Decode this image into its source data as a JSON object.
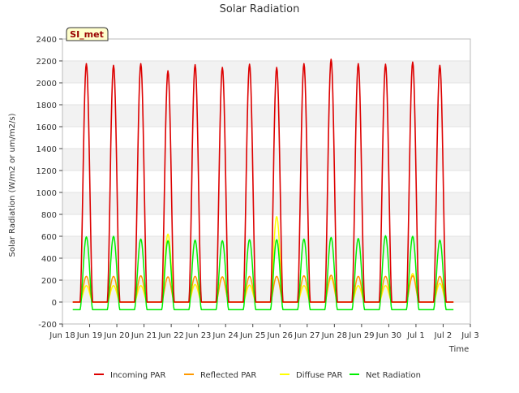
{
  "chart_data": {
    "type": "line",
    "title": "Solar Radiation",
    "xlabel": "Time",
    "ylabel": "Solar Radiation (W/m2 or um/m2/s)",
    "ylim": [
      -200,
      2400
    ],
    "xlim": [
      0,
      15
    ],
    "yticks": [
      -200,
      0,
      200,
      400,
      600,
      800,
      1000,
      1200,
      1400,
      1600,
      1800,
      2000,
      2200,
      2400
    ],
    "xticks": [
      {
        "value": 0,
        "label": "Jun 18"
      },
      {
        "value": 1,
        "label": "Jun 19"
      },
      {
        "value": 2,
        "label": "Jun 20"
      },
      {
        "value": 3,
        "label": "Jun 21"
      },
      {
        "value": 4,
        "label": "Jun 22"
      },
      {
        "value": 5,
        "label": "Jun 23"
      },
      {
        "value": 6,
        "label": "Jun 24"
      },
      {
        "value": 7,
        "label": "Jun 25"
      },
      {
        "value": 8,
        "label": "Jun 26"
      },
      {
        "value": 9,
        "label": "Jun 27"
      },
      {
        "value": 10,
        "label": "Jun 28"
      },
      {
        "value": 11,
        "label": "Jun 29"
      },
      {
        "value": 12,
        "label": "Jun 30"
      },
      {
        "value": 13,
        "label": "Jul 1"
      },
      {
        "value": 14,
        "label": "Jul 2"
      },
      {
        "value": 15,
        "label": "Jul 3"
      }
    ],
    "site_label": "SI_met",
    "legend_position": "bottom",
    "grid": "alternating horizontal bands",
    "days": 14,
    "series": [
      {
        "name": "Incoming PAR",
        "color": "#dd0000",
        "night": 0,
        "daily_peak": [
          2175,
          2160,
          2175,
          2110,
          2165,
          2140,
          2170,
          2140,
          2175,
          2215,
          2175,
          2170,
          2190,
          2160
        ]
      },
      {
        "name": "Reflected PAR",
        "color": "#ff9900",
        "night": 0,
        "daily_peak": [
          235,
          235,
          240,
          230,
          235,
          230,
          235,
          235,
          240,
          245,
          235,
          235,
          240,
          235
        ]
      },
      {
        "name": "Diffuse PAR",
        "color": "#ffff00",
        "night": 0,
        "daily_peak": [
          150,
          150,
          150,
          620,
          160,
          230,
          155,
          780,
          150,
          220,
          150,
          150,
          260,
          170
        ]
      },
      {
        "name": "Net Radiation",
        "color": "#00ee00",
        "night": -70,
        "daily_peak": [
          595,
          600,
          575,
          560,
          565,
          560,
          570,
          570,
          575,
          590,
          580,
          605,
          600,
          565
        ]
      }
    ]
  }
}
